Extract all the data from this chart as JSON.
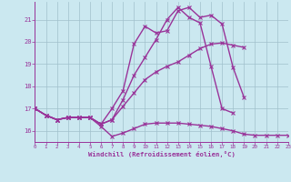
{
  "xlabel": "Windchill (Refroidissement éolien,°C)",
  "background_color": "#cbe8f0",
  "line_color": "#993399",
  "grid_color": "#a0c0cc",
  "x_hours": [
    0,
    1,
    2,
    3,
    4,
    5,
    6,
    7,
    8,
    9,
    10,
    11,
    12,
    13,
    14,
    15,
    16,
    17,
    18,
    19,
    20,
    21,
    22,
    23
  ],
  "curve1": [
    17.0,
    16.7,
    16.5,
    16.6,
    16.6,
    16.6,
    16.2,
    15.75,
    15.9,
    16.1,
    16.3,
    16.35,
    16.35,
    16.35,
    16.3,
    16.25,
    16.2,
    16.1,
    16.0,
    15.85,
    15.8,
    15.8,
    15.8,
    15.8
  ],
  "curve2": [
    17.0,
    16.7,
    16.5,
    16.6,
    16.6,
    16.6,
    16.3,
    16.5,
    17.1,
    17.7,
    18.3,
    18.65,
    18.9,
    19.1,
    19.4,
    19.7,
    19.9,
    19.95,
    19.85,
    19.75,
    null,
    null,
    null,
    null
  ],
  "curve3": [
    17.0,
    16.7,
    16.5,
    16.6,
    16.6,
    16.6,
    16.3,
    17.0,
    17.8,
    19.9,
    20.7,
    20.4,
    20.5,
    21.4,
    21.55,
    21.1,
    21.2,
    20.8,
    18.85,
    17.5,
    null,
    null,
    null,
    null
  ],
  "curve4": [
    17.0,
    16.7,
    16.5,
    16.6,
    16.6,
    16.6,
    16.3,
    16.5,
    17.4,
    18.5,
    19.3,
    20.1,
    21.0,
    21.55,
    21.1,
    20.85,
    18.9,
    17.0,
    16.8,
    null,
    null,
    null,
    null,
    null
  ],
  "xlim": [
    0,
    23
  ],
  "ylim": [
    15.5,
    21.8
  ],
  "yticks": [
    16,
    17,
    18,
    19,
    20,
    21
  ],
  "xticks": [
    0,
    1,
    2,
    3,
    4,
    5,
    6,
    7,
    8,
    9,
    10,
    11,
    12,
    13,
    14,
    15,
    16,
    17,
    18,
    19,
    20,
    21,
    22,
    23
  ]
}
